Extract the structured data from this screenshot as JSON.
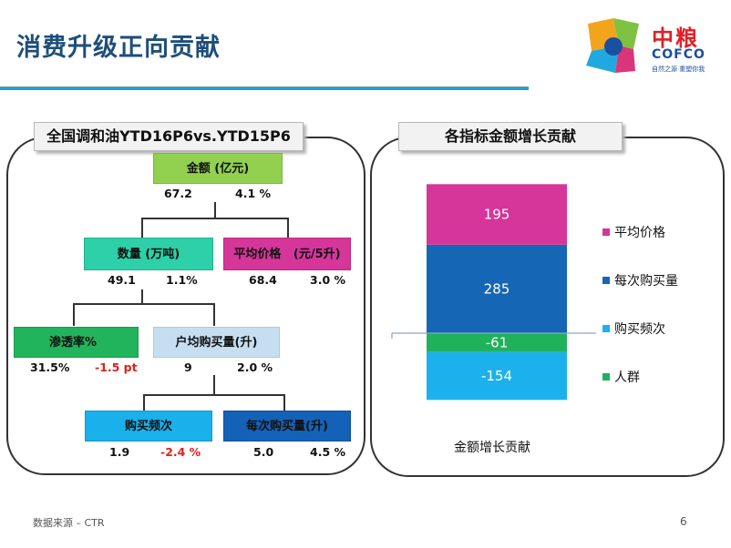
{
  "header": {
    "title": "消费升级正向贡献"
  },
  "logo": {
    "brand_cn": "中粮",
    "brand_en": "COFCO",
    "tagline": "自然之源 重塑你我",
    "colors": [
      "#1b4fa0",
      "#f2a51c",
      "#7fc241",
      "#20a9e0",
      "#d93679"
    ]
  },
  "left_panel": {
    "title": "全国调和油YTD16P6vs.YTD15P6",
    "nodes": {
      "amount": {
        "label": "金额 (亿元)",
        "v1": "67.2",
        "v2": "4.1 %"
      },
      "volume": {
        "label": "数量 (万吨)",
        "v1": "49.1",
        "v2": "1.1%"
      },
      "avg_price": {
        "label": "平均价格   (元/5升)",
        "v1": "68.4",
        "v2": "3.0 %"
      },
      "penetration": {
        "label": "渗透率%",
        "v1": "31.5%",
        "v2": "-1.5 pt"
      },
      "per_household": {
        "label": "户均购买量(升)",
        "v1": "9",
        "v2": "2.0 %"
      },
      "frequency": {
        "label": "购买频次",
        "v1": "1.9",
        "v2": "-2.4 %"
      },
      "per_purchase": {
        "label": "每次购买量(升)",
        "v1": "5.0",
        "v2": "4.5 %"
      }
    },
    "colors": {
      "green": "#92d050",
      "teal": "#2dd0a8",
      "magenta": "#d6359a",
      "green2": "#21b45d",
      "lightblue": "#c5dff0",
      "cyan": "#1ab0ec",
      "blue": "#1462b8"
    }
  },
  "right_panel": {
    "title": "各指标金额增长贡献",
    "xlabel": "金额增长贡献"
  },
  "chart_data": {
    "type": "bar",
    "stacked": true,
    "categories": [
      "金额增长贡献"
    ],
    "series": [
      {
        "name": "平均价格",
        "values": [
          195
        ],
        "color": "#d6359a"
      },
      {
        "name": "每次购买量",
        "values": [
          285
        ],
        "color": "#1566b5"
      },
      {
        "name": "购买频次",
        "values": [
          -154
        ],
        "color": "#1cb1ec"
      },
      {
        "name": "人群",
        "values": [
          -61
        ],
        "color": "#20b25a"
      }
    ],
    "legend": "right"
  },
  "footer": {
    "source": "数据来源 – CTR",
    "page": "6"
  }
}
